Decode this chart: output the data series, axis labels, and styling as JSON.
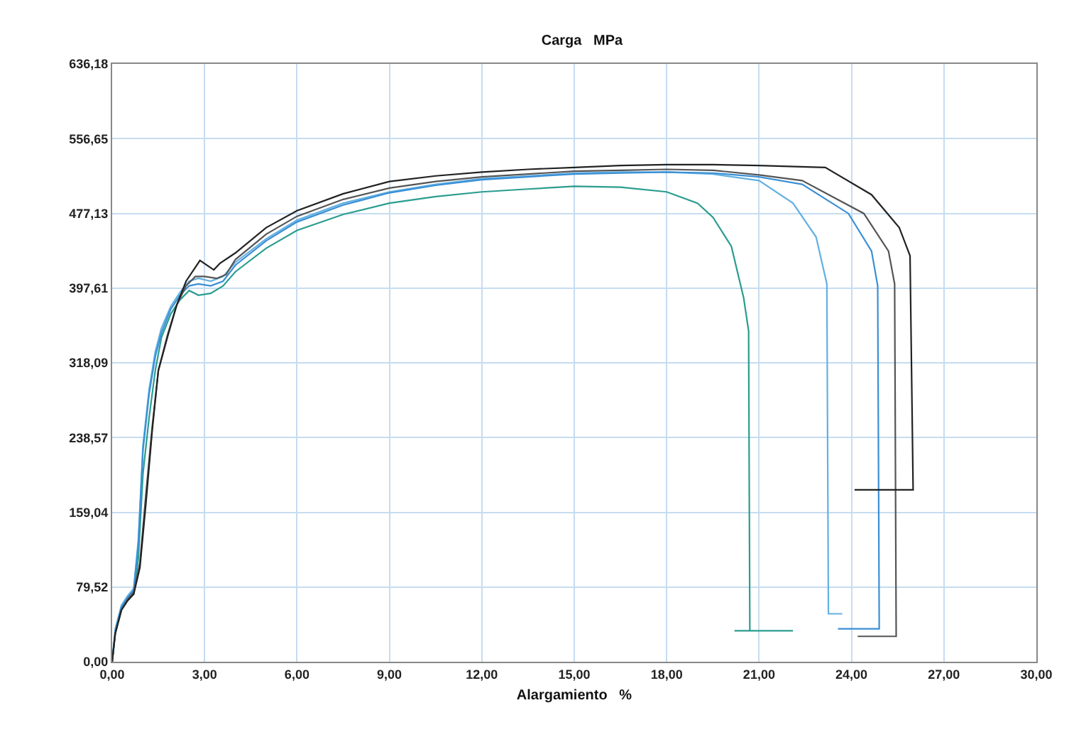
{
  "chart_data": {
    "type": "line",
    "title": "Carga   MPa",
    "xlabel": "Alargamiento   %",
    "xlim": [
      0,
      30
    ],
    "xticks": [
      {
        "value": 0,
        "label": "0,00"
      },
      {
        "value": 3,
        "label": "3,00"
      },
      {
        "value": 6,
        "label": "6,00"
      },
      {
        "value": 9,
        "label": "9,00"
      },
      {
        "value": 12,
        "label": "12,00"
      },
      {
        "value": 15,
        "label": "15,00"
      },
      {
        "value": 18,
        "label": "18,00"
      },
      {
        "value": 21,
        "label": "21,00"
      },
      {
        "value": 24,
        "label": "24,00"
      },
      {
        "value": 27,
        "label": "27,00"
      },
      {
        "value": 30,
        "label": "30,00"
      }
    ],
    "ylim": [
      0,
      636.18
    ],
    "yticks": [
      {
        "value": 0,
        "label": "0,00"
      },
      {
        "value": 79.52,
        "label": "79,52"
      },
      {
        "value": 159.04,
        "label": "159,04"
      },
      {
        "value": 238.57,
        "label": "238,57"
      },
      {
        "value": 318.09,
        "label": "318,09"
      },
      {
        "value": 397.61,
        "label": "397,61"
      },
      {
        "value": 477.13,
        "label": "477,13"
      },
      {
        "value": 556.65,
        "label": "556,65"
      },
      {
        "value": 636.18,
        "label": "636,18"
      }
    ],
    "grid": true,
    "marker": "none",
    "line_style": "solid",
    "series": [
      {
        "color": "#2a9d8f",
        "x": [
          0,
          0.1,
          0.3,
          0.5,
          0.7,
          0.85,
          1.0,
          1.2,
          1.4,
          1.6,
          1.9,
          2.2,
          2.5,
          2.8,
          3.2,
          3.6,
          4.0,
          5.0,
          6.0,
          7.5,
          9.0,
          10.5,
          12.0,
          13.5,
          15.0,
          16.5,
          18.0,
          19.0,
          19.5,
          20.1,
          20.5,
          20.66,
          20.7,
          20.2,
          22.1
        ],
        "values": [
          0,
          30,
          55,
          65,
          72,
          110,
          200,
          260,
          310,
          345,
          370,
          385,
          395,
          390,
          392,
          400,
          415,
          440,
          459,
          476,
          488,
          495,
          500,
          503,
          506,
          505,
          500,
          488,
          473,
          442,
          387,
          352,
          33,
          33,
          33
        ]
      },
      {
        "color": "#62b0e3",
        "x": [
          0,
          0.1,
          0.3,
          0.5,
          0.7,
          0.85,
          1.0,
          1.2,
          1.4,
          1.6,
          1.9,
          2.2,
          2.5,
          2.8,
          3.2,
          3.6,
          4.0,
          5.0,
          6.0,
          7.5,
          9.0,
          10.5,
          12.0,
          13.5,
          15.0,
          16.5,
          18.0,
          19.5,
          21.0,
          22.1,
          22.85,
          23.2,
          23.25,
          23.7
        ],
        "values": [
          0,
          35,
          60,
          70,
          78,
          130,
          230,
          290,
          330,
          355,
          378,
          393,
          405,
          408,
          405,
          410,
          425,
          450,
          470,
          488,
          500,
          508,
          514,
          517,
          520,
          521,
          521,
          519,
          512,
          488,
          452,
          402,
          51,
          51
        ]
      },
      {
        "color": "#3a8fd5",
        "x": [
          0,
          0.1,
          0.3,
          0.5,
          0.7,
          0.85,
          1.0,
          1.2,
          1.4,
          1.6,
          1.9,
          2.2,
          2.5,
          2.8,
          3.2,
          3.6,
          4.0,
          5.0,
          6.0,
          7.5,
          9.0,
          10.5,
          12.0,
          13.5,
          15.0,
          16.5,
          18.0,
          19.5,
          21.0,
          22.4,
          23.9,
          24.65,
          24.85,
          24.9,
          23.56
        ],
        "values": [
          0,
          32,
          58,
          68,
          76,
          125,
          225,
          285,
          325,
          350,
          375,
          390,
          400,
          402,
          400,
          405,
          422,
          448,
          468,
          486,
          499,
          507,
          513,
          516,
          519,
          520,
          521,
          520,
          516,
          508,
          477,
          437,
          400,
          35,
          35
        ]
      },
      {
        "color": "#555555",
        "x": [
          0,
          0.1,
          0.3,
          0.5,
          0.7,
          0.9,
          1.1,
          1.3,
          1.5,
          1.8,
          2.1,
          2.4,
          2.7,
          3.0,
          3.4,
          3.7,
          4.0,
          5.0,
          6.0,
          7.5,
          9.0,
          10.5,
          12.0,
          13.5,
          15.0,
          16.5,
          18.0,
          19.5,
          21.0,
          22.4,
          24.4,
          25.2,
          25.4,
          25.45,
          24.2
        ],
        "values": [
          0,
          30,
          55,
          66,
          74,
          105,
          180,
          250,
          310,
          348,
          380,
          400,
          410,
          410,
          408,
          412,
          428,
          455,
          474,
          492,
          504,
          511,
          516,
          519,
          522,
          523,
          524,
          523,
          518,
          512,
          477,
          437,
          402,
          27,
          27
        ]
      },
      {
        "color": "#222222",
        "x": [
          0,
          0.1,
          0.3,
          0.5,
          0.7,
          0.9,
          1.1,
          1.3,
          1.5,
          1.8,
          2.1,
          2.4,
          2.85,
          3.3,
          3.5,
          4.0,
          5.0,
          6.0,
          7.5,
          9.0,
          10.5,
          12.0,
          13.5,
          15.0,
          16.5,
          18.0,
          19.5,
          21.0,
          23.15,
          24.65,
          25.55,
          25.9,
          26.0,
          24.1
        ],
        "values": [
          0,
          30,
          55,
          65,
          72,
          100,
          170,
          246,
          310,
          346,
          380,
          405,
          427,
          417,
          424,
          435,
          462,
          480,
          498,
          511,
          517,
          521,
          524,
          526,
          528,
          529,
          529,
          528,
          526,
          497,
          462,
          432,
          183,
          183
        ]
      }
    ]
  }
}
